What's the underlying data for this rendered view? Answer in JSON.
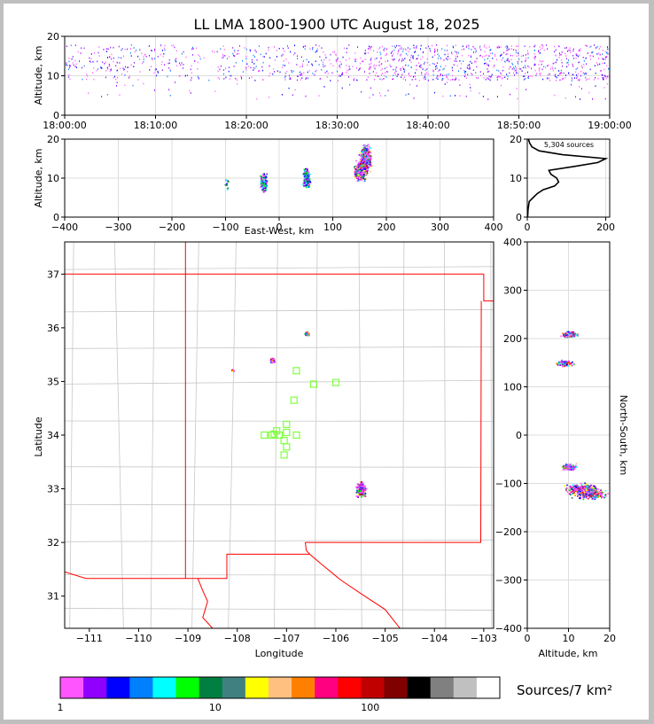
{
  "chart_data": [
    {
      "type": "scatter",
      "panel": "altitude-time",
      "title": "LL LMA 1800-1900 UTC August 18, 2025",
      "ylabel": "Altitude, km",
      "xlabel": "",
      "x_tick_labels": [
        "18:00:00",
        "18:10:00",
        "18:20:00",
        "18:30:00",
        "18:40:00",
        "18:50:00",
        "19:00:00"
      ],
      "xlim": [
        "18:00:00",
        "19:00:00"
      ],
      "ylim": [
        0,
        20
      ],
      "y_ticks": [
        0,
        10,
        20
      ],
      "grid": true,
      "note_clusters_alt_km": [
        [
          9,
          18
        ],
        [
          8,
          19
        ]
      ]
    },
    {
      "type": "scatter",
      "panel": "altitude-eastwest",
      "xlabel": "East-West, km",
      "ylabel": "Altitude, km",
      "xlim": [
        -400,
        400
      ],
      "ylim": [
        0,
        20
      ],
      "x_ticks": [
        -400,
        -300,
        -200,
        -100,
        0,
        100,
        200,
        300,
        400
      ],
      "y_ticks": [
        0,
        10,
        20
      ],
      "grid": true,
      "clusters": [
        {
          "x": -100,
          "y": 9
        },
        {
          "x": -30,
          "y": 9
        },
        {
          "x": 50,
          "y": 10
        },
        {
          "x": 150,
          "y": 12
        },
        {
          "x": 160,
          "y": 15
        }
      ]
    },
    {
      "type": "line",
      "panel": "altitude-histogram",
      "annotation": "5,304 sources",
      "xlim": [
        0,
        210
      ],
      "ylim": [
        0,
        20
      ],
      "x_ticks": [
        0,
        200
      ],
      "y_ticks": [
        0,
        10,
        20
      ],
      "grid": true,
      "profile": {
        "alt_km": [
          0,
          2,
          4,
          5,
          6,
          7,
          8,
          9,
          10,
          11,
          12,
          13,
          14,
          15,
          16,
          17,
          18,
          19,
          20
        ],
        "count": [
          1,
          2,
          5,
          15,
          25,
          40,
          70,
          80,
          75,
          60,
          55,
          120,
          180,
          200,
          90,
          30,
          12,
          6,
          3
        ]
      }
    },
    {
      "type": "scatter",
      "panel": "plan-view-map",
      "xlabel": "Longitude",
      "ylabel": "Latitude",
      "xlim": [
        -111.5,
        -102.8
      ],
      "ylim": [
        30.4,
        37.6
      ],
      "x_tick_labels": [
        "−111",
        "−110",
        "−109",
        "−108",
        "−107",
        "−106",
        "−105",
        "−104",
        "−103"
      ],
      "y_tick_labels": [
        "31",
        "32",
        "33",
        "34",
        "35",
        "36",
        "37"
      ],
      "clusters": [
        {
          "lon": -107.3,
          "lat": 35.4
        },
        {
          "lon": -106.6,
          "lat": 35.9
        },
        {
          "lon": -105.5,
          "lat": 33.0
        },
        {
          "lon": -108.1,
          "lat": 35.2
        }
      ],
      "stations": [
        [
          -106.8,
          35.2
        ],
        [
          -106.45,
          34.95
        ],
        [
          -106.0,
          34.98
        ],
        [
          -106.85,
          34.65
        ],
        [
          -107.0,
          34.2
        ],
        [
          -107.2,
          34.08
        ],
        [
          -107.0,
          34.05
        ],
        [
          -107.15,
          34.0
        ],
        [
          -107.3,
          34.0
        ],
        [
          -107.45,
          34.0
        ],
        [
          -106.8,
          34.0
        ],
        [
          -107.05,
          33.9
        ],
        [
          -107.0,
          33.78
        ],
        [
          -107.05,
          33.63
        ],
        [
          -107.25,
          34.02
        ]
      ]
    },
    {
      "type": "scatter",
      "panel": "northsouth-altitude",
      "xlabel": "Altitude, km",
      "ylabel": "North-South, km",
      "xlim": [
        0,
        20
      ],
      "ylim": [
        -400,
        400
      ],
      "x_ticks": [
        0,
        10,
        20
      ],
      "y_ticks": [
        -400,
        -300,
        -200,
        -100,
        0,
        100,
        200,
        300,
        400
      ],
      "grid": true,
      "clusters": [
        {
          "alt": 10,
          "ns": 210
        },
        {
          "alt": 9,
          "ns": 150
        },
        {
          "alt": 10,
          "ns": -65
        },
        {
          "alt": 13,
          "ns": -110
        },
        {
          "alt": 15,
          "ns": -120
        }
      ]
    },
    {
      "type": "table",
      "panel": "colorbar",
      "label": "Sources/7 km²",
      "tick_labels": [
        "1",
        "10",
        "100"
      ],
      "colors": [
        "#ff55ff",
        "#9000ff",
        "#0000ff",
        "#0080ff",
        "#00ffff",
        "#00ff00",
        "#008040",
        "#408080",
        "#ffff00",
        "#ffc080",
        "#ff8000",
        "#ff0080",
        "#ff0000",
        "#c00000",
        "#800000",
        "#000000",
        "#808080",
        "#c0c0c0",
        "#ffffff"
      ]
    }
  ]
}
